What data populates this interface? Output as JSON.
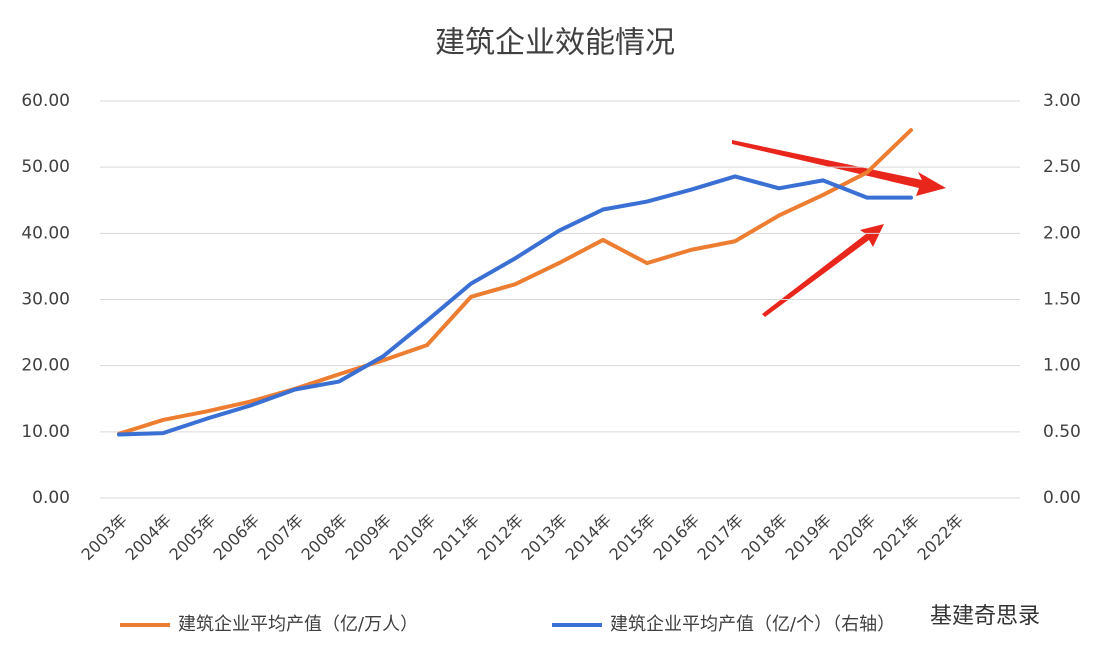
{
  "chart_data": {
    "type": "line",
    "title": "建筑企业效能情况",
    "categories": [
      "2003年",
      "2004年",
      "2005年",
      "2006年",
      "2007年",
      "2008年",
      "2009年",
      "2010年",
      "2011年",
      "2012年",
      "2013年",
      "2014年",
      "2015年",
      "2016年",
      "2017年",
      "2018年",
      "2019年",
      "2020年",
      "2021年",
      "2022年"
    ],
    "series": [
      {
        "name": "建筑企业平均产值（亿/万人）",
        "color": "#ed7d31",
        "axis": "y",
        "values": [
          9.7,
          11.8,
          13.1,
          14.6,
          16.5,
          18.7,
          20.8,
          23.1,
          30.4,
          32.3,
          35.5,
          39.0,
          35.5,
          37.5,
          38.8,
          42.7,
          45.8,
          49.2,
          55.6,
          null
        ]
      },
      {
        "name": "建筑企业平均产值（亿/个）（右轴）",
        "color": "#3a6fd4",
        "axis": "y2",
        "values": [
          0.48,
          0.49,
          0.6,
          0.7,
          0.82,
          0.88,
          1.07,
          1.34,
          1.62,
          1.81,
          2.02,
          2.18,
          2.24,
          2.33,
          2.43,
          2.34,
          2.4,
          2.27,
          2.27,
          null
        ]
      }
    ],
    "ylim": [
      0,
      60
    ],
    "yticks": [
      {
        "value": 0,
        "label": "0.00"
      },
      {
        "value": 10,
        "label": "10.00"
      },
      {
        "value": 20,
        "label": "20.00"
      },
      {
        "value": 30,
        "label": "30.00"
      },
      {
        "value": 40,
        "label": "40.00"
      },
      {
        "value": 50,
        "label": "50.00"
      },
      {
        "value": 60,
        "label": "60.00"
      }
    ],
    "y2lim": [
      0,
      3
    ],
    "y2ticks": [
      {
        "value": 0,
        "label": "0.00"
      },
      {
        "value": 0.5,
        "label": "0.50"
      },
      {
        "value": 1,
        "label": "1.00"
      },
      {
        "value": 1.5,
        "label": "1.50"
      },
      {
        "value": 2,
        "label": "2.00"
      },
      {
        "value": 2.5,
        "label": "2.50"
      },
      {
        "value": 3,
        "label": "3.00"
      }
    ],
    "grid": true,
    "legend": "bottom"
  },
  "watermark": "基建奇思录"
}
